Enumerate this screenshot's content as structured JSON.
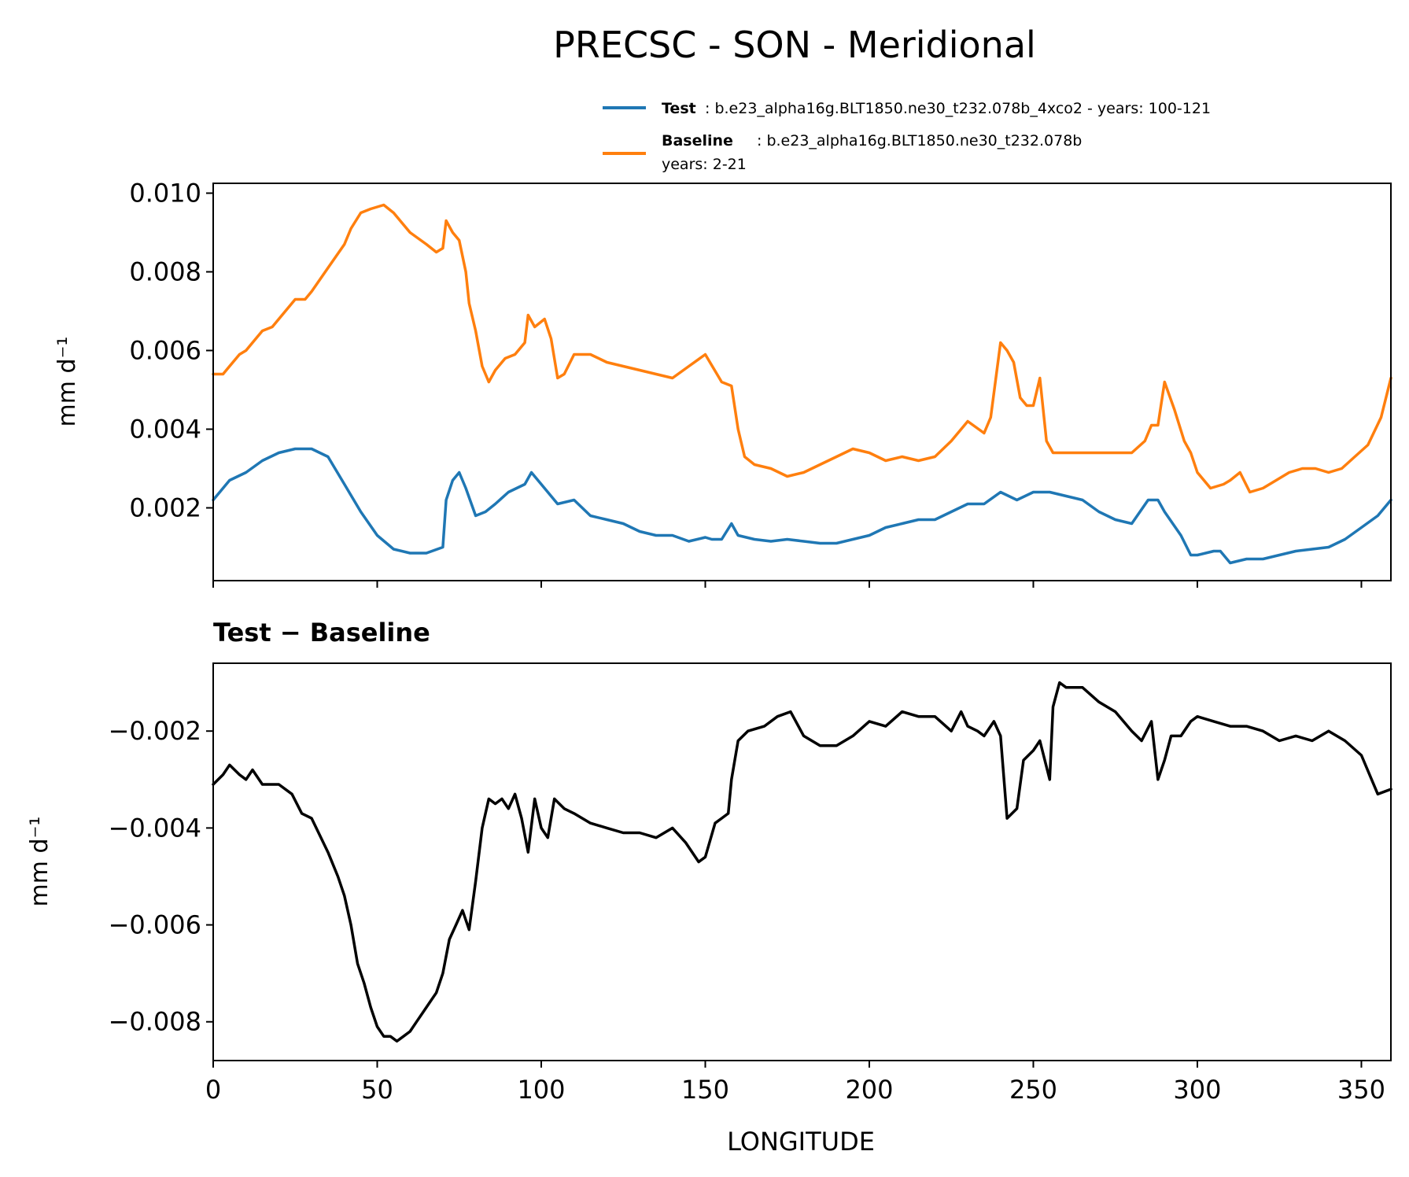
{
  "figure": {
    "title": "PRECSC - SON - Meridional"
  },
  "legend": {
    "test": {
      "label": "Test",
      "text": ": b.e23_alpha16g.BLT1850.ne30_t232.078b_4xco2 - years: 100-121",
      "color": "#1f77b4"
    },
    "baseline": {
      "label": "Baseline",
      "text": ": b.e23_alpha16g.BLT1850.ne30_t232.078b",
      "text2": "years: 2-21",
      "color": "#ff7f0e"
    }
  },
  "chart_data": [
    {
      "type": "line",
      "panel": "top",
      "ylabel": "mm d⁻¹",
      "xlim": [
        0,
        359
      ],
      "ylim": [
        0.00015,
        0.01025
      ],
      "yticks": [
        "0.002",
        "0.004",
        "0.006",
        "0.008",
        "0.010"
      ],
      "ytick_values": [
        0.002,
        0.004,
        0.006,
        0.008,
        0.01
      ],
      "series": [
        {
          "name": "Test",
          "color": "#1f77b4",
          "x": [
            0,
            5,
            10,
            15,
            20,
            25,
            30,
            35,
            40,
            45,
            50,
            55,
            60,
            65,
            70,
            71,
            73,
            75,
            77,
            80,
            83,
            86,
            90,
            95,
            97,
            100,
            105,
            110,
            115,
            120,
            125,
            130,
            135,
            140,
            145,
            150,
            152,
            155,
            158,
            160,
            165,
            170,
            175,
            180,
            185,
            190,
            195,
            200,
            205,
            210,
            215,
            220,
            225,
            230,
            235,
            240,
            245,
            250,
            255,
            260,
            265,
            270,
            275,
            280,
            285,
            288,
            290,
            295,
            298,
            300,
            305,
            307,
            310,
            315,
            320,
            325,
            330,
            335,
            340,
            345,
            350,
            355,
            359
          ],
          "values": [
            0.0022,
            0.0027,
            0.0029,
            0.0032,
            0.0034,
            0.0035,
            0.0035,
            0.0033,
            0.0026,
            0.0019,
            0.0013,
            0.00095,
            0.00085,
            0.00085,
            0.001,
            0.0022,
            0.0027,
            0.0029,
            0.0025,
            0.0018,
            0.0019,
            0.0021,
            0.0024,
            0.0026,
            0.0029,
            0.0026,
            0.0021,
            0.0022,
            0.0018,
            0.0017,
            0.0016,
            0.0014,
            0.0013,
            0.0013,
            0.00115,
            0.00125,
            0.0012,
            0.0012,
            0.0016,
            0.0013,
            0.0012,
            0.00115,
            0.0012,
            0.00115,
            0.0011,
            0.0011,
            0.0012,
            0.0013,
            0.0015,
            0.0016,
            0.0017,
            0.0017,
            0.0019,
            0.0021,
            0.0021,
            0.0024,
            0.0022,
            0.0024,
            0.0024,
            0.0023,
            0.0022,
            0.0019,
            0.0017,
            0.0016,
            0.0022,
            0.0022,
            0.0019,
            0.0013,
            0.0008,
            0.0008,
            0.0009,
            0.0009,
            0.0006,
            0.0007,
            0.0007,
            0.0008,
            0.0009,
            0.00095,
            0.001,
            0.0012,
            0.0015,
            0.0018,
            0.0022
          ]
        },
        {
          "name": "Baseline",
          "color": "#ff7f0e",
          "x": [
            0,
            3,
            5,
            8,
            10,
            12,
            15,
            18,
            20,
            25,
            28,
            30,
            35,
            40,
            42,
            45,
            48,
            52,
            55,
            60,
            65,
            68,
            70,
            71,
            73,
            75,
            77,
            78,
            80,
            82,
            84,
            86,
            89,
            92,
            95,
            96,
            98,
            101,
            103,
            105,
            107,
            110,
            115,
            120,
            125,
            130,
            135,
            140,
            145,
            150,
            155,
            158,
            160,
            162,
            165,
            170,
            175,
            180,
            185,
            190,
            195,
            200,
            205,
            210,
            215,
            220,
            225,
            230,
            235,
            237,
            240,
            242,
            244,
            246,
            248,
            250,
            252,
            254,
            256,
            258,
            260,
            270,
            280,
            284,
            286,
            288,
            290,
            293,
            296,
            298,
            300,
            304,
            308,
            310,
            313,
            316,
            320,
            324,
            328,
            332,
            336,
            340,
            344,
            348,
            352,
            356,
            359
          ],
          "values": [
            0.0054,
            0.0054,
            0.0056,
            0.0059,
            0.006,
            0.0062,
            0.0065,
            0.0066,
            0.0068,
            0.0073,
            0.0073,
            0.0075,
            0.0081,
            0.0087,
            0.0091,
            0.0095,
            0.0096,
            0.0097,
            0.0095,
            0.009,
            0.0087,
            0.0085,
            0.0086,
            0.0093,
            0.009,
            0.0088,
            0.008,
            0.0072,
            0.0065,
            0.0056,
            0.0052,
            0.0055,
            0.0058,
            0.0059,
            0.0062,
            0.0069,
            0.0066,
            0.0068,
            0.0063,
            0.0053,
            0.0054,
            0.0059,
            0.0059,
            0.0057,
            0.0056,
            0.0055,
            0.0054,
            0.0053,
            0.0056,
            0.0059,
            0.0052,
            0.0051,
            0.004,
            0.0033,
            0.0031,
            0.003,
            0.0028,
            0.0029,
            0.0031,
            0.0033,
            0.0035,
            0.0034,
            0.0032,
            0.0033,
            0.0032,
            0.0033,
            0.0037,
            0.0042,
            0.0039,
            0.0043,
            0.0062,
            0.006,
            0.0057,
            0.0048,
            0.0046,
            0.0046,
            0.0053,
            0.0037,
            0.0034,
            0.0034,
            0.0034,
            0.0034,
            0.0034,
            0.0037,
            0.0041,
            0.0041,
            0.0052,
            0.0045,
            0.0037,
            0.0034,
            0.0029,
            0.0025,
            0.0026,
            0.0027,
            0.0029,
            0.0024,
            0.0025,
            0.0027,
            0.0029,
            0.003,
            0.003,
            0.0029,
            0.003,
            0.0033,
            0.0036,
            0.0043,
            0.0053
          ]
        }
      ]
    },
    {
      "type": "line",
      "panel": "bottom",
      "title": "Test − Baseline",
      "xlabel": "LONGITUDE",
      "ylabel": "mm d⁻¹",
      "xlim": [
        0,
        359
      ],
      "ylim": [
        -0.0088,
        -0.0006
      ],
      "xticks": [
        "0",
        "50",
        "100",
        "150",
        "200",
        "250",
        "300",
        "350"
      ],
      "xtick_values": [
        0,
        50,
        100,
        150,
        200,
        250,
        300,
        350
      ],
      "yticks": [
        "−0.008",
        "−0.006",
        "−0.004",
        "−0.002"
      ],
      "ytick_values": [
        -0.008,
        -0.006,
        -0.004,
        -0.002
      ],
      "series": [
        {
          "name": "Test − Baseline",
          "color": "#000000",
          "x": [
            0,
            3,
            5,
            8,
            10,
            12,
            15,
            18,
            20,
            24,
            27,
            30,
            35,
            38,
            40,
            42,
            44,
            46,
            48,
            50,
            52,
            54,
            56,
            58,
            60,
            62,
            64,
            66,
            68,
            70,
            72,
            74,
            76,
            78,
            80,
            82,
            84,
            86,
            88,
            90,
            92,
            94,
            96,
            98,
            100,
            102,
            104,
            107,
            110,
            115,
            120,
            125,
            130,
            135,
            140,
            144,
            148,
            150,
            153,
            155,
            157,
            158,
            160,
            163,
            168,
            172,
            176,
            180,
            185,
            190,
            195,
            200,
            205,
            210,
            215,
            220,
            225,
            228,
            230,
            233,
            235,
            238,
            240,
            242,
            245,
            247,
            250,
            252,
            255,
            256,
            258,
            260,
            265,
            270,
            275,
            280,
            283,
            286,
            288,
            290,
            292,
            295,
            298,
            300,
            305,
            310,
            315,
            320,
            325,
            330,
            335,
            340,
            345,
            350,
            355,
            359
          ],
          "values": [
            -0.0031,
            -0.0029,
            -0.0027,
            -0.0029,
            -0.003,
            -0.0028,
            -0.0031,
            -0.0031,
            -0.0031,
            -0.0033,
            -0.0037,
            -0.0038,
            -0.0045,
            -0.005,
            -0.0054,
            -0.006,
            -0.0068,
            -0.0072,
            -0.0077,
            -0.0081,
            -0.0083,
            -0.0083,
            -0.0084,
            -0.0083,
            -0.0082,
            -0.008,
            -0.0078,
            -0.0076,
            -0.0074,
            -0.007,
            -0.0063,
            -0.006,
            -0.0057,
            -0.0061,
            -0.0051,
            -0.004,
            -0.0034,
            -0.0035,
            -0.0034,
            -0.0036,
            -0.0033,
            -0.0038,
            -0.0045,
            -0.0034,
            -0.004,
            -0.0042,
            -0.0034,
            -0.0036,
            -0.0037,
            -0.0039,
            -0.004,
            -0.0041,
            -0.0041,
            -0.0042,
            -0.004,
            -0.0043,
            -0.0047,
            -0.0046,
            -0.0039,
            -0.0038,
            -0.0037,
            -0.003,
            -0.0022,
            -0.002,
            -0.0019,
            -0.0017,
            -0.0016,
            -0.0021,
            -0.0023,
            -0.0023,
            -0.0021,
            -0.0018,
            -0.0019,
            -0.0016,
            -0.0017,
            -0.0017,
            -0.002,
            -0.0016,
            -0.0019,
            -0.002,
            -0.0021,
            -0.0018,
            -0.0021,
            -0.0038,
            -0.0036,
            -0.0026,
            -0.0024,
            -0.0022,
            -0.003,
            -0.0015,
            -0.001,
            -0.0011,
            -0.0011,
            -0.0014,
            -0.0016,
            -0.002,
            -0.0022,
            -0.0018,
            -0.003,
            -0.0026,
            -0.0021,
            -0.0021,
            -0.0018,
            -0.0017,
            -0.0018,
            -0.0019,
            -0.0019,
            -0.002,
            -0.0022,
            -0.0021,
            -0.0022,
            -0.002,
            -0.0022,
            -0.0025,
            -0.0033,
            -0.0032
          ]
        }
      ]
    }
  ]
}
